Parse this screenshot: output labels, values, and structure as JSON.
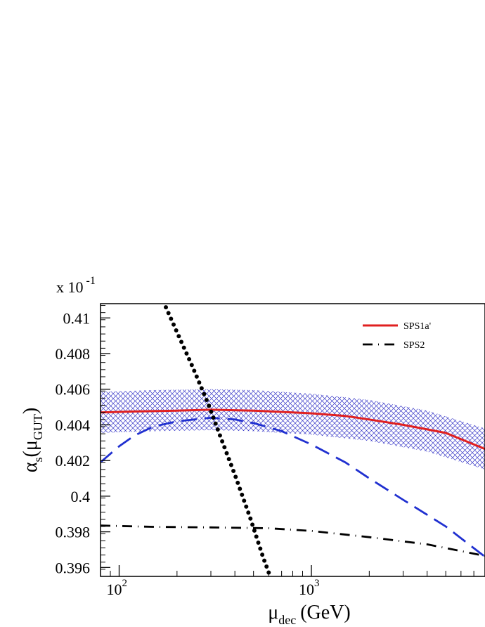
{
  "chart_data": {
    "type": "line",
    "title": "",
    "xlabel": "μ_dec (GeV)",
    "xlabel_main": "μ",
    "xlabel_sub": "dec",
    "xlabel_unit": "(GeV)",
    "ylabel_parts": {
      "a": "α",
      "b": "s",
      "c": "(μ",
      "d": "GUT",
      "e": ")"
    },
    "y_multiplier": {
      "base": "x 10",
      "exp": "-1"
    },
    "x_scale": "log",
    "xlim": [
      80,
      8000
    ],
    "ylim": [
      0.3955,
      0.4108
    ],
    "x_ticks": [
      {
        "value": 100,
        "base": "10",
        "exp": "2"
      },
      {
        "value": 1000,
        "base": "10",
        "exp": "3"
      }
    ],
    "y_ticks": [
      {
        "value": 0.396,
        "label": "0.396"
      },
      {
        "value": 0.398,
        "label": "0.398"
      },
      {
        "value": 0.4,
        "label": "0.4"
      },
      {
        "value": 0.402,
        "label": "0.402"
      },
      {
        "value": 0.404,
        "label": "0.404"
      },
      {
        "value": 0.406,
        "label": "0.406"
      },
      {
        "value": 0.408,
        "label": "0.408"
      },
      {
        "value": 0.41,
        "label": "0.41"
      }
    ],
    "grid": false,
    "legend_position": "top-right",
    "band": {
      "x": [
        80,
        150,
        300,
        500,
        1000,
        2000,
        4000,
        8000
      ],
      "upper": [
        0.40585,
        0.40595,
        0.406,
        0.40595,
        0.40575,
        0.4054,
        0.4048,
        0.4038
      ],
      "lower": [
        0.40355,
        0.40365,
        0.4037,
        0.40365,
        0.40345,
        0.4031,
        0.4025,
        0.4015
      ],
      "color": "#3a3ac8"
    },
    "series": [
      {
        "name": "SPS1a'",
        "style": "solid",
        "color": "#e02020",
        "x": [
          80,
          120,
          200,
          300,
          500,
          800,
          1000,
          1500,
          2000,
          3000,
          5000,
          8000
        ],
        "y": [
          0.4047,
          0.40475,
          0.4048,
          0.40485,
          0.4048,
          0.4047,
          0.40465,
          0.4045,
          0.4043,
          0.404,
          0.40355,
          0.40265
        ]
      },
      {
        "name": "SPS2",
        "style": "dashdot",
        "color": "#000000",
        "x": [
          80,
          150,
          300,
          600,
          1000,
          2000,
          4000,
          8000
        ],
        "y": [
          0.39835,
          0.39828,
          0.39825,
          0.3982,
          0.39805,
          0.3977,
          0.3973,
          0.39665
        ]
      },
      {
        "name": "",
        "style": "dashed",
        "color": "#2030d0",
        "x": [
          80,
          100,
          120,
          150,
          200,
          300,
          400,
          500,
          700,
          1000,
          1500,
          2000,
          3000,
          5000,
          8000
        ],
        "y": [
          0.4019,
          0.4028,
          0.4034,
          0.4039,
          0.4042,
          0.4044,
          0.4043,
          0.4041,
          0.40365,
          0.4029,
          0.4019,
          0.401,
          0.3998,
          0.3983,
          0.3966
        ]
      },
      {
        "name": "",
        "style": "dotted",
        "color": "#000000",
        "x": [
          175,
          200,
          240,
          290,
          340,
          400,
          480,
          560,
          610
        ],
        "y": [
          0.4106,
          0.4092,
          0.4073,
          0.4052,
          0.4032,
          0.4012,
          0.3988,
          0.3966,
          0.3955
        ]
      }
    ]
  }
}
